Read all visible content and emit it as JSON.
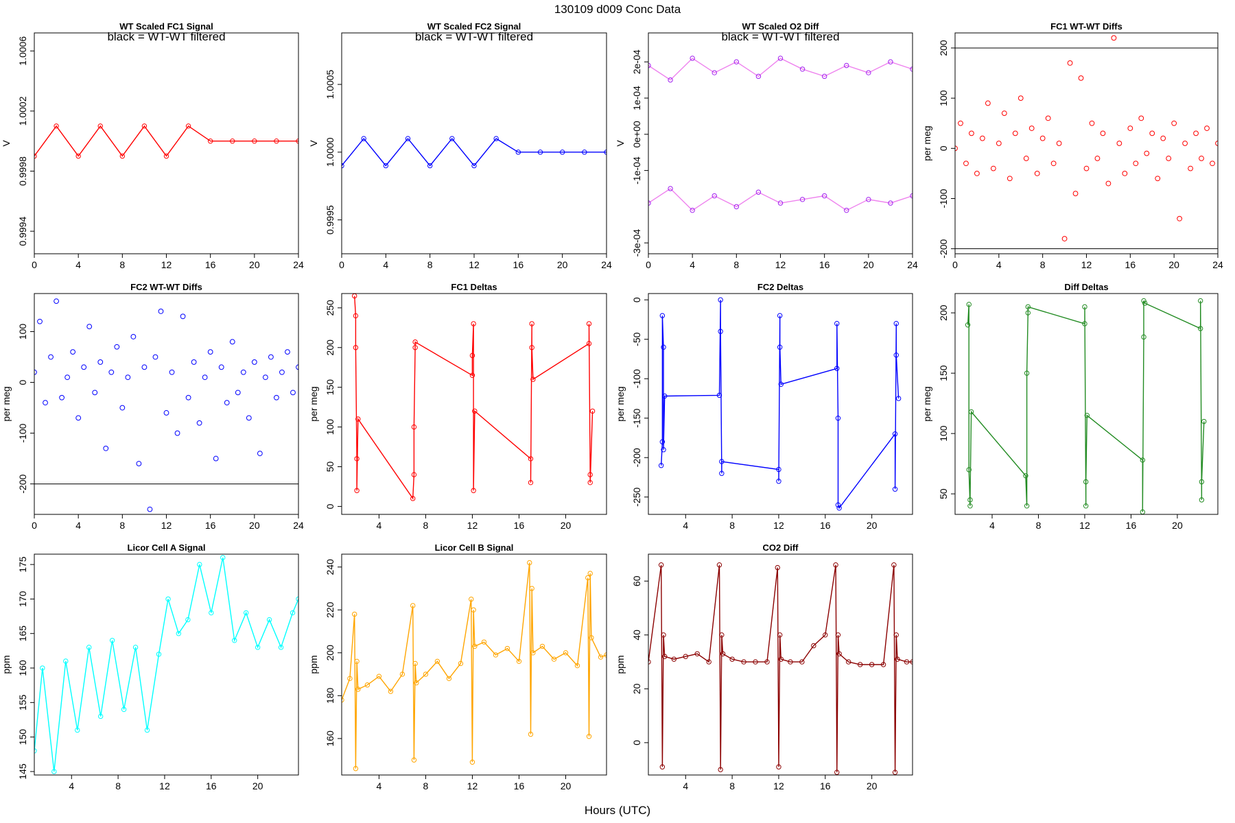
{
  "header": {
    "title": "130109    d009    Conc Data"
  },
  "footer": {
    "xlabel": "Hours (UTC)"
  },
  "chart_data": [
    {
      "id": "p1",
      "type": "line",
      "title": "WT Scaled FC1 Signal",
      "legend": "black = WT-WT filtered",
      "ylabel": "V",
      "color": "#ff0000",
      "xticks": [
        "0",
        "4",
        "8",
        "12",
        "16",
        "20",
        "24"
      ],
      "xlim": [
        0,
        24
      ],
      "yticks": [
        "0.9994",
        "0.9998",
        "1.0002",
        "1.0006"
      ],
      "ylim": [
        0.99925,
        1.00072
      ],
      "series": [
        {
          "name": "FC1 signal",
          "x": [
            0,
            2,
            4,
            6,
            8,
            10,
            12,
            14,
            16,
            18,
            20,
            22,
            24
          ],
          "y": [
            0.9999,
            1.0001,
            0.9999,
            1.0001,
            0.9999,
            1.0001,
            0.9999,
            1.0001,
            1.0,
            1.0,
            1.0,
            1.0,
            1.0
          ]
        }
      ]
    },
    {
      "id": "p2",
      "type": "line",
      "title": "WT Scaled FC2 Signal",
      "legend": "black = WT-WT filtered",
      "ylabel": "V",
      "color": "#0000ff",
      "xticks": [
        "0",
        "4",
        "8",
        "12",
        "16",
        "20",
        "24"
      ],
      "xlim": [
        0,
        24
      ],
      "yticks": [
        "0.9995",
        "1.0000",
        "1.0005"
      ],
      "ylim": [
        0.99925,
        1.00088
      ],
      "series": [
        {
          "name": "FC2 signal",
          "x": [
            0,
            2,
            4,
            6,
            8,
            10,
            12,
            14,
            16,
            18,
            20,
            22,
            24
          ],
          "y": [
            0.9999,
            1.0001,
            0.9999,
            1.0001,
            0.9999,
            1.0001,
            0.9999,
            1.0001,
            1.0,
            1.0,
            1.0,
            1.0,
            1.0
          ]
        }
      ]
    },
    {
      "id": "p3",
      "type": "line",
      "title": "WT Scaled O2 Diff",
      "legend": "black = WT-WT filtered",
      "ylabel": "V",
      "color": "#ee82ee",
      "point_color": "#a020f0",
      "xticks": [
        "0",
        "4",
        "8",
        "12",
        "16",
        "20",
        "24"
      ],
      "xlim": [
        0,
        24
      ],
      "yticks": [
        "-3e-04",
        "-1e-04",
        "0e+00",
        "1e-04",
        "2e-04"
      ],
      "ytick_values": [
        -0.0003,
        -0.0001,
        0,
        0.0001,
        0.0002
      ],
      "ylim": [
        -0.00033,
        0.00028
      ],
      "series": [
        {
          "name": "upper",
          "x": [
            0,
            2,
            4,
            6,
            8,
            10,
            12,
            14,
            16,
            18,
            20,
            22,
            24
          ],
          "y": [
            0.00019,
            0.00015,
            0.00021,
            0.00017,
            0.0002,
            0.00016,
            0.00021,
            0.00018,
            0.00016,
            0.00019,
            0.00017,
            0.0002,
            0.00018
          ]
        },
        {
          "name": "lower",
          "x": [
            0,
            2,
            4,
            6,
            8,
            10,
            12,
            14,
            16,
            18,
            20,
            22,
            24
          ],
          "y": [
            -0.00019,
            -0.00015,
            -0.00021,
            -0.00017,
            -0.0002,
            -0.00016,
            -0.00019,
            -0.00018,
            -0.00017,
            -0.00021,
            -0.00018,
            -0.00019,
            -0.00017
          ]
        }
      ]
    },
    {
      "id": "p4",
      "type": "scatter",
      "title": "FC1 WT-WT Diffs",
      "ylabel": "per meg",
      "color": "#ff0000",
      "xticks": [
        "0",
        "4",
        "8",
        "12",
        "16",
        "20",
        "24"
      ],
      "xlim": [
        0,
        24
      ],
      "yticks": [
        "-200",
        "-100",
        "0",
        "100",
        "200"
      ],
      "ylim": [
        -210,
        230
      ],
      "hlines": [
        200,
        -200
      ],
      "points": [
        [
          0,
          0
        ],
        [
          0.5,
          50
        ],
        [
          1,
          -30
        ],
        [
          1.5,
          30
        ],
        [
          2,
          -50
        ],
        [
          2.5,
          20
        ],
        [
          3,
          90
        ],
        [
          3.5,
          -40
        ],
        [
          4,
          10
        ],
        [
          4.5,
          70
        ],
        [
          5,
          -60
        ],
        [
          5.5,
          30
        ],
        [
          6,
          100
        ],
        [
          6.5,
          -20
        ],
        [
          7,
          40
        ],
        [
          7.5,
          -50
        ],
        [
          8,
          20
        ],
        [
          8.5,
          60
        ],
        [
          9,
          -30
        ],
        [
          9.5,
          10
        ],
        [
          10,
          -180
        ],
        [
          10.5,
          170
        ],
        [
          11,
          -90
        ],
        [
          11.5,
          140
        ],
        [
          12,
          -40
        ],
        [
          12.5,
          50
        ],
        [
          13,
          -20
        ],
        [
          13.5,
          30
        ],
        [
          14,
          -70
        ],
        [
          14.5,
          220
        ],
        [
          15,
          10
        ],
        [
          15.5,
          -50
        ],
        [
          16,
          40
        ],
        [
          16.5,
          -30
        ],
        [
          17,
          60
        ],
        [
          17.5,
          -10
        ],
        [
          18,
          30
        ],
        [
          18.5,
          -60
        ],
        [
          19,
          20
        ],
        [
          19.5,
          -20
        ],
        [
          20,
          50
        ],
        [
          20.5,
          -140
        ],
        [
          21,
          10
        ],
        [
          21.5,
          -40
        ],
        [
          22,
          30
        ],
        [
          22.5,
          -20
        ],
        [
          23,
          40
        ],
        [
          23.5,
          -30
        ],
        [
          24,
          10
        ]
      ]
    },
    {
      "id": "p5",
      "type": "scatter",
      "title": "FC2 WT-WT Diffs",
      "ylabel": "per meg",
      "color": "#0000ff",
      "xticks": [
        "0",
        "4",
        "8",
        "12",
        "16",
        "20",
        "24"
      ],
      "xlim": [
        0,
        24
      ],
      "yticks": [
        "-200",
        "-100",
        "0",
        "100"
      ],
      "ylim": [
        -260,
        175
      ],
      "hlines": [
        -200
      ],
      "points": [
        [
          0,
          20
        ],
        [
          0.5,
          120
        ],
        [
          1,
          -40
        ],
        [
          1.5,
          50
        ],
        [
          2,
          160
        ],
        [
          2.5,
          -30
        ],
        [
          3,
          10
        ],
        [
          3.5,
          60
        ],
        [
          4,
          -70
        ],
        [
          4.5,
          30
        ],
        [
          5,
          110
        ],
        [
          5.5,
          -20
        ],
        [
          6,
          40
        ],
        [
          6.5,
          -130
        ],
        [
          7,
          20
        ],
        [
          7.5,
          70
        ],
        [
          8,
          -50
        ],
        [
          8.5,
          10
        ],
        [
          9,
          90
        ],
        [
          9.5,
          -160
        ],
        [
          10,
          30
        ],
        [
          10.5,
          -250
        ],
        [
          11,
          50
        ],
        [
          11.5,
          140
        ],
        [
          12,
          -60
        ],
        [
          12.5,
          20
        ],
        [
          13,
          -100
        ],
        [
          13.5,
          130
        ],
        [
          14,
          -30
        ],
        [
          14.5,
          40
        ],
        [
          15,
          -80
        ],
        [
          15.5,
          10
        ],
        [
          16,
          60
        ],
        [
          16.5,
          -150
        ],
        [
          17,
          30
        ],
        [
          17.5,
          -40
        ],
        [
          18,
          80
        ],
        [
          18.5,
          -20
        ],
        [
          19,
          20
        ],
        [
          19.5,
          -70
        ],
        [
          20,
          40
        ],
        [
          20.5,
          -140
        ],
        [
          21,
          10
        ],
        [
          21.5,
          50
        ],
        [
          22,
          -30
        ],
        [
          22.5,
          20
        ],
        [
          23,
          60
        ],
        [
          23.5,
          -20
        ],
        [
          24,
          30
        ]
      ]
    },
    {
      "id": "p6",
      "type": "line",
      "title": "FC1 Deltas",
      "ylabel": "per meg",
      "color": "#ff0000",
      "xticks": [
        "4",
        "8",
        "12",
        "16",
        "20"
      ],
      "xlim": [
        0.8,
        23.5
      ],
      "yticks": [
        "0",
        "50",
        "100",
        "150",
        "200",
        "250"
      ],
      "ylim": [
        -10,
        268
      ],
      "series": [
        {
          "name": "FC1 delta",
          "x": [
            1.9,
            2.0,
            2.0,
            2.1,
            2.1,
            2.2,
            6.9,
            7.0,
            7.0,
            7.1,
            7.1,
            12.0,
            12.0,
            12.1,
            12.1,
            12.2,
            17.0,
            17.0,
            17.1,
            17.1,
            17.2,
            22.0,
            22.0,
            22.1,
            22.1,
            22.3
          ],
          "y": [
            265,
            240,
            200,
            60,
            20,
            110,
            10,
            40,
            100,
            200,
            207,
            165,
            190,
            230,
            20,
            120,
            60,
            30,
            230,
            200,
            160,
            205,
            230,
            40,
            30,
            120
          ]
        }
      ]
    },
    {
      "id": "p7",
      "type": "line",
      "title": "FC2 Deltas",
      "ylabel": "per meg",
      "color": "#0000ff",
      "xticks": [
        "4",
        "8",
        "12",
        "16",
        "20"
      ],
      "xlim": [
        0.8,
        23.5
      ],
      "yticks": [
        "-250",
        "-200",
        "-150",
        "-100",
        "-50",
        "0"
      ],
      "ylim": [
        -272,
        8
      ],
      "series": [
        {
          "name": "FC2 delta",
          "x": [
            1.9,
            2.0,
            2.0,
            2.1,
            2.1,
            2.2,
            6.9,
            7.0,
            7.0,
            7.1,
            7.1,
            12.0,
            12.0,
            12.1,
            12.1,
            12.2,
            17.0,
            17.0,
            17.1,
            17.1,
            17.2,
            22.0,
            22.0,
            22.1,
            22.1,
            22.3
          ],
          "y": [
            -210,
            -180,
            -20,
            -60,
            -190,
            -122,
            -121,
            0,
            -40,
            -220,
            -205,
            -215,
            -230,
            -20,
            -60,
            -107,
            -87,
            -30,
            -150,
            -260,
            -264,
            -170,
            -240,
            -30,
            -70,
            -125
          ]
        }
      ]
    },
    {
      "id": "p8",
      "type": "line",
      "title": "Diff Deltas",
      "ylabel": "per meg",
      "color": "#228b22",
      "xticks": [
        "4",
        "8",
        "12",
        "16",
        "20"
      ],
      "xlim": [
        0.8,
        23.5
      ],
      "yticks": [
        "50",
        "100",
        "150",
        "200"
      ],
      "ylim": [
        33,
        216
      ],
      "series": [
        {
          "name": "Diff delta",
          "x": [
            1.9,
            2.0,
            2.0,
            2.1,
            2.1,
            2.2,
            6.9,
            7.0,
            7.0,
            7.1,
            7.1,
            12.0,
            12.0,
            12.1,
            12.1,
            12.2,
            17.0,
            17.0,
            17.1,
            17.1,
            17.2,
            22.0,
            22.0,
            22.1,
            22.1,
            22.3
          ],
          "y": [
            190,
            207,
            70,
            40,
            45,
            118,
            65,
            40,
            150,
            200,
            205,
            191,
            205,
            40,
            60,
            115,
            78,
            35,
            180,
            210,
            208,
            187,
            210,
            45,
            60,
            110
          ]
        }
      ]
    },
    {
      "id": "p9",
      "type": "line",
      "title": "Licor Cell A Signal",
      "ylabel": "ppm",
      "color": "#00ffff",
      "xticks": [
        "4",
        "8",
        "12",
        "16",
        "20"
      ],
      "xlim": [
        0.8,
        23.5
      ],
      "yticks": [
        "145",
        "150",
        "155",
        "160",
        "165",
        "170",
        "175"
      ],
      "ylim": [
        144.5,
        176.5
      ],
      "series": [
        {
          "name": "Cell A",
          "x": [
            0.8,
            1.5,
            2.5,
            3.5,
            4.5,
            5.5,
            6.5,
            7.5,
            8.5,
            9.5,
            10.5,
            11.5,
            12.3,
            13.2,
            14.0,
            15.0,
            16.0,
            17.0,
            18.0,
            19.0,
            20.0,
            21.0,
            22.0,
            23.0,
            23.5
          ],
          "y": [
            148,
            160,
            145,
            161,
            151,
            163,
            153,
            164,
            154,
            163,
            151,
            162,
            170,
            165,
            167,
            175,
            168,
            176,
            164,
            168,
            163,
            167,
            163,
            168,
            170
          ]
        }
      ]
    },
    {
      "id": "p10",
      "type": "line",
      "title": "Licor Cell B Signal",
      "ylabel": "ppm",
      "color": "#ffa500",
      "xticks": [
        "4",
        "8",
        "12",
        "16",
        "20"
      ],
      "xlim": [
        0.8,
        23.5
      ],
      "yticks": [
        "160",
        "180",
        "200",
        "220",
        "240"
      ],
      "ylim": [
        143,
        246
      ],
      "series": [
        {
          "name": "Cell B",
          "x": [
            0.8,
            1.5,
            1.9,
            2.0,
            2.1,
            2.2,
            3,
            4,
            5,
            6,
            6.9,
            7.0,
            7.1,
            7.2,
            8,
            9,
            10,
            11,
            11.9,
            12.0,
            12.1,
            12.2,
            13,
            14,
            15,
            16,
            16.9,
            17.0,
            17.1,
            17.2,
            18,
            19,
            20,
            21,
            21.9,
            22.0,
            22.1,
            22.2,
            23,
            23.5
          ],
          "y": [
            178,
            188,
            218,
            146,
            196,
            183,
            185,
            189,
            182,
            190,
            222,
            150,
            195,
            186,
            190,
            196,
            188,
            195,
            225,
            149,
            220,
            203,
            205,
            199,
            202,
            196,
            242,
            162,
            230,
            200,
            203,
            197,
            200,
            194,
            235,
            161,
            237,
            207,
            198,
            199
          ]
        }
      ]
    },
    {
      "id": "p11",
      "type": "line",
      "title": "CO2 Diff",
      "ylabel": "ppm",
      "color": "#8b0000",
      "xticks": [
        "4",
        "8",
        "12",
        "16",
        "20"
      ],
      "xlim": [
        0.8,
        23.5
      ],
      "yticks": [
        "0",
        "20",
        "40",
        "60"
      ],
      "ylim": [
        -12,
        70
      ],
      "series": [
        {
          "name": "CO2 diff",
          "x": [
            0.8,
            1.9,
            2.0,
            2.1,
            2.2,
            3,
            4,
            5,
            6,
            6.9,
            7.0,
            7.1,
            7.2,
            8,
            9,
            10,
            11,
            11.9,
            12.0,
            12.1,
            12.2,
            13,
            14,
            15,
            16,
            16.9,
            17.0,
            17.1,
            17.2,
            18,
            19,
            20,
            21,
            21.9,
            22.0,
            22.1,
            22.2,
            23,
            23.5
          ],
          "y": [
            30,
            66,
            -9,
            40,
            32,
            31,
            32,
            33,
            30,
            66,
            -10,
            40,
            33,
            31,
            30,
            30,
            30,
            65,
            -9,
            40,
            31,
            30,
            30,
            36,
            40,
            66,
            -11,
            40,
            33,
            30,
            29,
            29,
            29,
            66,
            -11,
            40,
            31,
            30,
            30
          ]
        }
      ]
    }
  ]
}
